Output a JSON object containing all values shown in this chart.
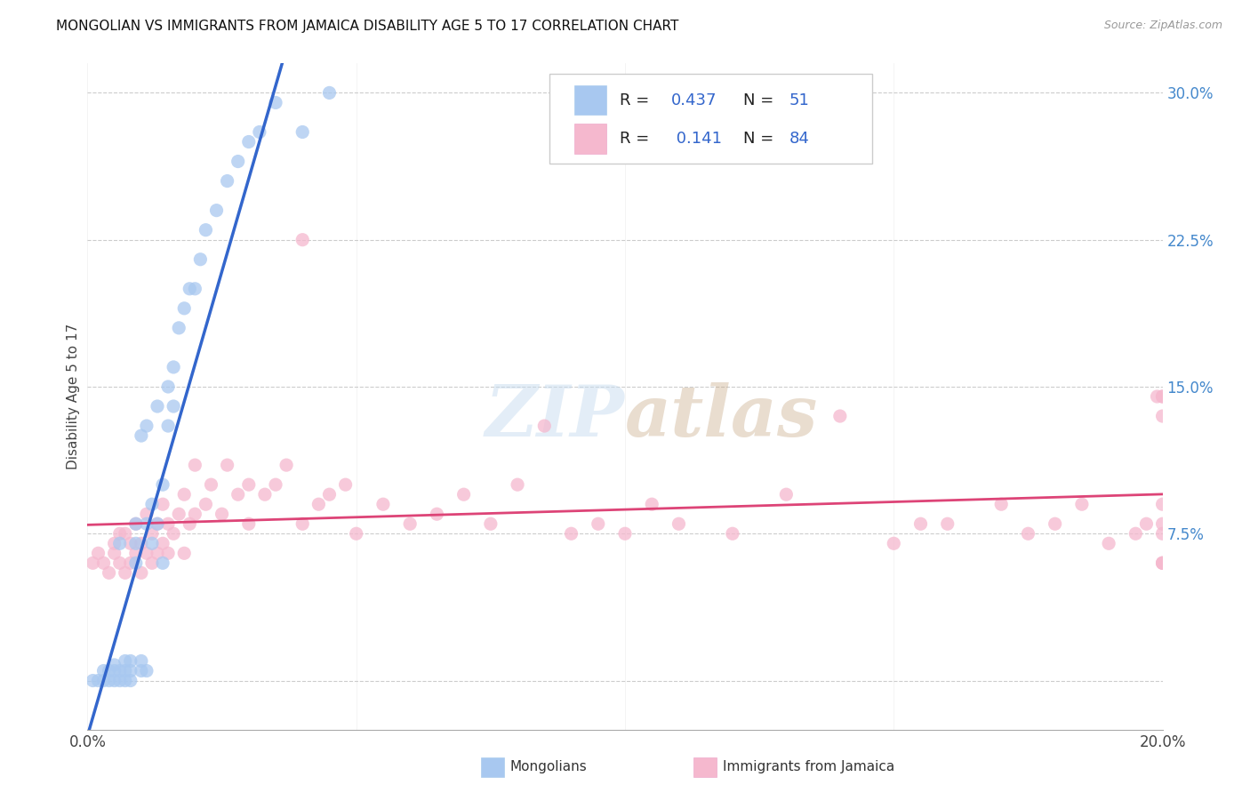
{
  "title": "MONGOLIAN VS IMMIGRANTS FROM JAMAICA DISABILITY AGE 5 TO 17 CORRELATION CHART",
  "source": "Source: ZipAtlas.com",
  "ylabel": "Disability Age 5 to 17",
  "xlabel_mongolians": "Mongolians",
  "xlabel_jamaica": "Immigrants from Jamaica",
  "xlim": [
    0.0,
    0.2
  ],
  "ylim": [
    -0.025,
    0.315
  ],
  "x_ticks": [
    0.0,
    0.05,
    0.1,
    0.15,
    0.2
  ],
  "x_tick_labels": [
    "0.0%",
    "",
    "",
    "",
    "20.0%"
  ],
  "y_tick_labels": [
    "",
    "7.5%",
    "15.0%",
    "22.5%",
    "30.0%"
  ],
  "y_ticks": [
    0.0,
    0.075,
    0.15,
    0.225,
    0.3
  ],
  "mongolian_R": 0.437,
  "mongolian_N": 51,
  "jamaica_R": 0.141,
  "jamaica_N": 84,
  "mongolian_color": "#a8c8f0",
  "jamaica_color": "#f5b8ce",
  "mongolian_line_color": "#3366cc",
  "jamaica_line_color": "#dd4477",
  "background_color": "#ffffff",
  "grid_color": "#cccccc",
  "mongolian_scatter_x": [
    0.001,
    0.002,
    0.003,
    0.003,
    0.004,
    0.004,
    0.005,
    0.005,
    0.005,
    0.006,
    0.006,
    0.006,
    0.007,
    0.007,
    0.007,
    0.008,
    0.008,
    0.008,
    0.009,
    0.009,
    0.009,
    0.01,
    0.01,
    0.01,
    0.011,
    0.011,
    0.011,
    0.012,
    0.012,
    0.013,
    0.013,
    0.014,
    0.014,
    0.015,
    0.015,
    0.016,
    0.016,
    0.017,
    0.018,
    0.019,
    0.02,
    0.021,
    0.022,
    0.024,
    0.026,
    0.028,
    0.03,
    0.032,
    0.035,
    0.04,
    0.045
  ],
  "mongolian_scatter_y": [
    0.0,
    0.0,
    0.0,
    0.005,
    0.0,
    0.005,
    0.0,
    0.005,
    0.008,
    0.0,
    0.005,
    0.07,
    0.0,
    0.005,
    0.01,
    0.0,
    0.005,
    0.01,
    0.06,
    0.07,
    0.08,
    0.005,
    0.01,
    0.125,
    0.005,
    0.08,
    0.13,
    0.07,
    0.09,
    0.08,
    0.14,
    0.06,
    0.1,
    0.13,
    0.15,
    0.14,
    0.16,
    0.18,
    0.19,
    0.2,
    0.2,
    0.215,
    0.23,
    0.24,
    0.255,
    0.265,
    0.275,
    0.28,
    0.295,
    0.28,
    0.3
  ],
  "jamaica_scatter_x": [
    0.001,
    0.002,
    0.003,
    0.004,
    0.005,
    0.005,
    0.006,
    0.006,
    0.007,
    0.007,
    0.008,
    0.008,
    0.009,
    0.009,
    0.01,
    0.01,
    0.011,
    0.011,
    0.012,
    0.012,
    0.013,
    0.013,
    0.014,
    0.014,
    0.015,
    0.015,
    0.016,
    0.017,
    0.018,
    0.018,
    0.019,
    0.02,
    0.02,
    0.022,
    0.023,
    0.025,
    0.026,
    0.028,
    0.03,
    0.03,
    0.033,
    0.035,
    0.037,
    0.04,
    0.04,
    0.043,
    0.045,
    0.048,
    0.05,
    0.055,
    0.06,
    0.065,
    0.07,
    0.075,
    0.08,
    0.085,
    0.09,
    0.095,
    0.1,
    0.105,
    0.11,
    0.12,
    0.13,
    0.14,
    0.15,
    0.155,
    0.16,
    0.17,
    0.175,
    0.18,
    0.185,
    0.19,
    0.195,
    0.197,
    0.199,
    0.2,
    0.2,
    0.2,
    0.2,
    0.2,
    0.2,
    0.2,
    0.2,
    0.2
  ],
  "jamaica_scatter_y": [
    0.06,
    0.065,
    0.06,
    0.055,
    0.065,
    0.07,
    0.06,
    0.075,
    0.055,
    0.075,
    0.06,
    0.07,
    0.065,
    0.08,
    0.055,
    0.07,
    0.065,
    0.085,
    0.06,
    0.075,
    0.065,
    0.08,
    0.07,
    0.09,
    0.065,
    0.08,
    0.075,
    0.085,
    0.065,
    0.095,
    0.08,
    0.085,
    0.11,
    0.09,
    0.1,
    0.085,
    0.11,
    0.095,
    0.08,
    0.1,
    0.095,
    0.1,
    0.11,
    0.08,
    0.225,
    0.09,
    0.095,
    0.1,
    0.075,
    0.09,
    0.08,
    0.085,
    0.095,
    0.08,
    0.1,
    0.13,
    0.075,
    0.08,
    0.075,
    0.09,
    0.08,
    0.075,
    0.095,
    0.135,
    0.07,
    0.08,
    0.08,
    0.09,
    0.075,
    0.08,
    0.09,
    0.07,
    0.075,
    0.08,
    0.145,
    0.06,
    0.075,
    0.08,
    0.09,
    0.135,
    0.145,
    0.06,
    0.145,
    0.06
  ]
}
